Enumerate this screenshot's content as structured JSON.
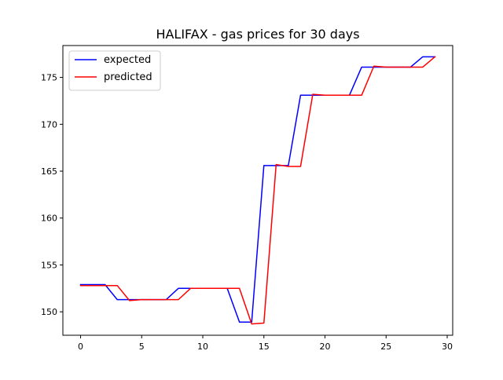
{
  "chart_data": {
    "type": "line",
    "title": "HALIFAX - gas prices for 30 days",
    "xlabel": "",
    "ylabel": "",
    "xlim": [
      -1.45,
      30.45
    ],
    "ylim": [
      147.5,
      178.4
    ],
    "xticks": [
      0,
      5,
      10,
      15,
      20,
      25,
      30
    ],
    "yticks": [
      150,
      155,
      160,
      165,
      170,
      175
    ],
    "grid": false,
    "legend_position": "top-left",
    "x": [
      0,
      1,
      2,
      3,
      4,
      5,
      6,
      7,
      8,
      9,
      10,
      11,
      12,
      13,
      14,
      15,
      16,
      17,
      18,
      19,
      20,
      21,
      22,
      23,
      24,
      25,
      26,
      27,
      28,
      29
    ],
    "series": [
      {
        "name": "expected",
        "color": "#0000ff",
        "values": [
          152.9,
          152.9,
          152.9,
          151.3,
          151.3,
          151.3,
          151.3,
          151.3,
          152.5,
          152.5,
          152.5,
          152.5,
          152.5,
          148.9,
          148.9,
          165.6,
          165.6,
          165.6,
          173.1,
          173.1,
          173.1,
          173.1,
          173.1,
          176.1,
          176.1,
          176.1,
          176.1,
          176.1,
          177.2,
          177.2
        ]
      },
      {
        "name": "predicted",
        "color": "#ff0000",
        "values": [
          152.8,
          152.8,
          152.8,
          152.8,
          151.2,
          151.3,
          151.3,
          151.3,
          151.3,
          152.5,
          152.5,
          152.5,
          152.5,
          152.5,
          148.7,
          148.8,
          165.7,
          165.5,
          165.5,
          173.2,
          173.1,
          173.1,
          173.1,
          173.1,
          176.2,
          176.1,
          176.1,
          176.1,
          176.1,
          177.2
        ]
      }
    ]
  }
}
